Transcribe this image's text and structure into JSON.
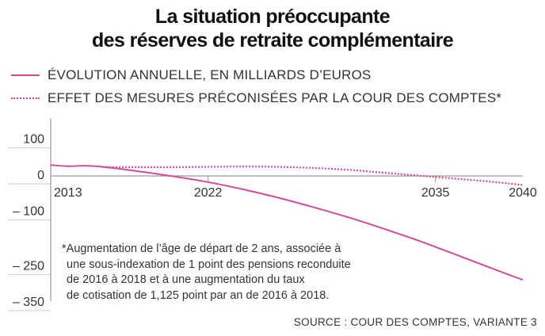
{
  "title_line1": "La situation préoccupante",
  "title_line2": "des réserves de retraite complémentaire",
  "legend": [
    {
      "label": "ÉVOLUTION ANNUELLE, EN MILLIARDS D’EUROS",
      "style": "solid"
    },
    {
      "label": "EFFET DES MESURES PRÉCONISÉES PAR LA COUR DES COMPTES*",
      "style": "dotted"
    }
  ],
  "footnote": [
    "*Augmentation de l’âge de départ de 2 ans, associée à",
    "une sous-indexation de 1 point des pensions reconduite",
    "de 2016 à 2018 et à une augmentation du taux",
    "de cotisation de 1,125 point par an de 2016 à 2018."
  ],
  "source": "SOURCE : COUR DES COMPTES, VARIANTE 3",
  "colors": {
    "series": "#d44a9b",
    "axis": "#999999"
  },
  "chart_data": {
    "type": "line",
    "xlim": [
      2013,
      2040
    ],
    "ylim": [
      -350,
      100
    ],
    "x_ticks": [
      {
        "value": 2013,
        "label": "2013"
      },
      {
        "value": 2022,
        "label": "2022"
      },
      {
        "value": 2035,
        "label": "2035"
      },
      {
        "value": 2040,
        "label": "2040"
      }
    ],
    "y_ticks": [
      {
        "value": 100,
        "label": "100"
      },
      {
        "value": 0,
        "label": "0"
      },
      {
        "value": -100,
        "label": "– 100"
      },
      {
        "value": -250,
        "label": "– 250"
      },
      {
        "value": -350,
        "label": "– 350"
      }
    ],
    "series": [
      {
        "name": "ÉVOLUTION ANNUELLE, EN MILLIARDS D’EUROS",
        "style": "solid",
        "x": [
          2013,
          2014,
          2015,
          2016,
          2018,
          2020,
          2022,
          2024,
          2026,
          2028,
          2030,
          2032,
          2034,
          2036,
          2038,
          2040
        ],
        "y": [
          30,
          27,
          28,
          25,
          13,
          -1,
          -17,
          -37,
          -60,
          -86,
          -114,
          -145,
          -178,
          -214,
          -251,
          -287
        ]
      },
      {
        "name": "EFFET DES MESURES PRÉCONISÉES PAR LA COUR DES COMPTES*",
        "style": "dotted",
        "x": [
          2016,
          2018,
          2020,
          2022,
          2024,
          2026,
          2028,
          2030,
          2032,
          2034,
          2036,
          2038,
          2040
        ],
        "y": [
          24,
          24,
          24,
          25,
          26,
          25,
          22,
          17,
          9,
          1,
          -7,
          -15,
          -25
        ]
      }
    ]
  }
}
